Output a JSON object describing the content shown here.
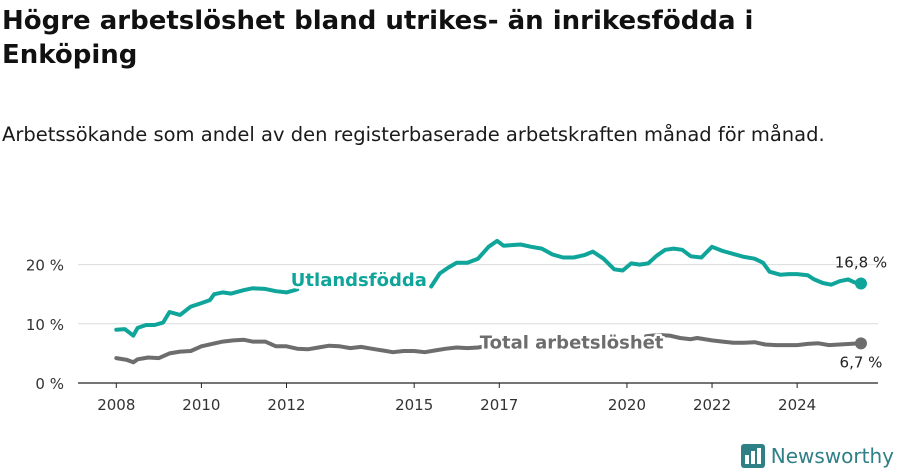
{
  "title": "Högre arbetslöshet bland utrikes- än inrikesfödda i Enköping",
  "subtitle": "Arbetssökande som andel av den registerbaserade arbetskraften månad för månad.",
  "brand": {
    "name": "Newsworthy",
    "icon": "newsworthy-logo-icon",
    "color": "#2f7f86"
  },
  "chart_data": {
    "type": "line",
    "y_ticks": [
      "0 %",
      "10 %",
      "20 %"
    ],
    "y_tick_values": [
      0,
      10,
      20
    ],
    "x_ticks": [
      "2008",
      "2010",
      "2012",
      "2015",
      "2017",
      "2020",
      "2022",
      "2024"
    ],
    "x_tick_values": [
      2008,
      2010,
      2012,
      2015,
      2017,
      2020,
      2022,
      2024
    ],
    "xlim": [
      2007.1,
      2025.9
    ],
    "ylim": [
      0,
      25
    ],
    "grid": "horizontal",
    "series": [
      {
        "name": "Utlandsfödda",
        "color": "#0fa59a",
        "end_label": "16,8 %",
        "points": [
          [
            2008.0,
            9.0
          ],
          [
            2008.2,
            9.1
          ],
          [
            2008.4,
            8.0
          ],
          [
            2008.5,
            9.3
          ],
          [
            2008.7,
            9.8
          ],
          [
            2008.9,
            9.8
          ],
          [
            2009.1,
            10.2
          ],
          [
            2009.25,
            12.0
          ],
          [
            2009.5,
            11.5
          ],
          [
            2009.75,
            12.9
          ],
          [
            2010.0,
            13.5
          ],
          [
            2010.2,
            14.0
          ],
          [
            2010.3,
            15.0
          ],
          [
            2010.5,
            15.3
          ],
          [
            2010.7,
            15.1
          ],
          [
            2011.0,
            15.7
          ],
          [
            2011.2,
            16.0
          ],
          [
            2011.5,
            15.9
          ],
          [
            2011.75,
            15.5
          ],
          [
            2012.0,
            15.3
          ],
          [
            2012.25,
            15.8
          ],
          [
            2015.4,
            16.3
          ],
          [
            2015.6,
            18.5
          ],
          [
            2015.8,
            19.5
          ],
          [
            2016.0,
            20.3
          ],
          [
            2016.25,
            20.3
          ],
          [
            2016.5,
            21.0
          ],
          [
            2016.75,
            23.0
          ],
          [
            2016.95,
            24.0
          ],
          [
            2017.1,
            23.2
          ],
          [
            2017.5,
            23.4
          ],
          [
            2017.75,
            23.0
          ],
          [
            2018.0,
            22.7
          ],
          [
            2018.25,
            21.7
          ],
          [
            2018.5,
            21.2
          ],
          [
            2018.75,
            21.2
          ],
          [
            2019.0,
            21.6
          ],
          [
            2019.2,
            22.2
          ],
          [
            2019.45,
            21.0
          ],
          [
            2019.7,
            19.2
          ],
          [
            2019.9,
            19.0
          ],
          [
            2020.1,
            20.2
          ],
          [
            2020.3,
            20.0
          ],
          [
            2020.5,
            20.2
          ],
          [
            2020.7,
            21.5
          ],
          [
            2020.9,
            22.5
          ],
          [
            2021.1,
            22.7
          ],
          [
            2021.3,
            22.5
          ],
          [
            2021.5,
            21.4
          ],
          [
            2021.75,
            21.2
          ],
          [
            2021.9,
            22.3
          ],
          [
            2022.0,
            23.0
          ],
          [
            2022.25,
            22.3
          ],
          [
            2022.5,
            21.8
          ],
          [
            2022.75,
            21.3
          ],
          [
            2023.0,
            21.0
          ],
          [
            2023.2,
            20.3
          ],
          [
            2023.35,
            18.8
          ],
          [
            2023.6,
            18.3
          ],
          [
            2023.8,
            18.4
          ],
          [
            2024.0,
            18.4
          ],
          [
            2024.25,
            18.2
          ],
          [
            2024.4,
            17.5
          ],
          [
            2024.6,
            16.9
          ],
          [
            2024.8,
            16.6
          ],
          [
            2025.0,
            17.2
          ],
          [
            2025.2,
            17.5
          ],
          [
            2025.35,
            17.0
          ],
          [
            2025.5,
            16.8
          ]
        ]
      },
      {
        "name": "Total arbetslöshet",
        "color": "#6d6d6d",
        "end_label": "6,7 %",
        "points": [
          [
            2008.0,
            4.2
          ],
          [
            2008.25,
            3.9
          ],
          [
            2008.4,
            3.5
          ],
          [
            2008.5,
            4.0
          ],
          [
            2008.75,
            4.3
          ],
          [
            2009.0,
            4.2
          ],
          [
            2009.25,
            5.0
          ],
          [
            2009.5,
            5.3
          ],
          [
            2009.75,
            5.4
          ],
          [
            2010.0,
            6.2
          ],
          [
            2010.25,
            6.6
          ],
          [
            2010.5,
            7.0
          ],
          [
            2010.75,
            7.2
          ],
          [
            2011.0,
            7.3
          ],
          [
            2011.2,
            7.0
          ],
          [
            2011.5,
            7.0
          ],
          [
            2011.75,
            6.2
          ],
          [
            2012.0,
            6.2
          ],
          [
            2012.25,
            5.8
          ],
          [
            2012.5,
            5.7
          ],
          [
            2012.75,
            6.0
          ],
          [
            2013.0,
            6.3
          ],
          [
            2013.25,
            6.2
          ],
          [
            2013.5,
            5.9
          ],
          [
            2013.75,
            6.1
          ],
          [
            2014.0,
            5.8
          ],
          [
            2014.25,
            5.5
          ],
          [
            2014.5,
            5.2
          ],
          [
            2014.75,
            5.4
          ],
          [
            2015.0,
            5.4
          ],
          [
            2015.25,
            5.2
          ],
          [
            2015.5,
            5.5
          ],
          [
            2015.75,
            5.8
          ],
          [
            2016.0,
            6.0
          ],
          [
            2016.25,
            5.9
          ],
          [
            2016.5,
            6.0
          ],
          [
            2016.75,
            6.3
          ],
          [
            2016.9,
            6.7
          ],
          [
            2020.45,
            7.9
          ],
          [
            2020.75,
            8.1
          ],
          [
            2021.0,
            8.0
          ],
          [
            2021.25,
            7.6
          ],
          [
            2021.5,
            7.4
          ],
          [
            2021.65,
            7.6
          ],
          [
            2022.0,
            7.2
          ],
          [
            2022.25,
            7.0
          ],
          [
            2022.5,
            6.8
          ],
          [
            2022.75,
            6.8
          ],
          [
            2023.0,
            6.9
          ],
          [
            2023.25,
            6.5
          ],
          [
            2023.5,
            6.4
          ],
          [
            2023.75,
            6.4
          ],
          [
            2024.0,
            6.4
          ],
          [
            2024.25,
            6.6
          ],
          [
            2024.5,
            6.7
          ],
          [
            2024.75,
            6.4
          ],
          [
            2025.0,
            6.5
          ],
          [
            2025.25,
            6.6
          ],
          [
            2025.5,
            6.7
          ]
        ]
      }
    ]
  }
}
